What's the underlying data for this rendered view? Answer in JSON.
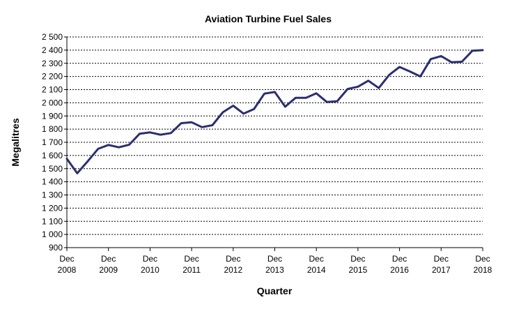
{
  "chart_data": {
    "type": "line",
    "title": "Aviation Turbine Fuel Sales",
    "xlabel": "Quarter",
    "ylabel": "Megalitres",
    "ylim": [
      900,
      2500
    ],
    "ystep": 100,
    "y_ticks": [
      "900",
      "1 000",
      "1 100",
      "1 200",
      "1 300",
      "1 400",
      "1 500",
      "1 600",
      "1 700",
      "1 800",
      "1 900",
      "2 000",
      "2 100",
      "2 200",
      "2 300",
      "2 400",
      "2 500"
    ],
    "x_ticks": [
      {
        "line1": "Dec",
        "line2": "2008"
      },
      {
        "line1": "Dec",
        "line2": "2009"
      },
      {
        "line1": "Dec",
        "line2": "2010"
      },
      {
        "line1": "Dec",
        "line2": "2011"
      },
      {
        "line1": "Dec",
        "line2": "2012"
      },
      {
        "line1": "Dec",
        "line2": "2013"
      },
      {
        "line1": "Dec",
        "line2": "2014"
      },
      {
        "line1": "Dec",
        "line2": "2015"
      },
      {
        "line1": "Dec",
        "line2": "2016"
      },
      {
        "line1": "Dec",
        "line2": "2017"
      },
      {
        "line1": "Dec",
        "line2": "2018"
      }
    ],
    "grid": true,
    "legend": "none",
    "color": "#2b2f6e",
    "series": [
      {
        "values": [
          1575,
          1465,
          1555,
          1650,
          1680,
          1662,
          1682,
          1765,
          1775,
          1758,
          1770,
          1845,
          1852,
          1815,
          1830,
          1928,
          1978,
          1918,
          1952,
          2070,
          2082,
          1970,
          2038,
          2038,
          2072,
          2006,
          2012,
          2105,
          2122,
          2168,
          2112,
          2212,
          2272,
          2238,
          2200,
          2332,
          2355,
          2308,
          2312,
          2395,
          2400
        ]
      }
    ]
  }
}
